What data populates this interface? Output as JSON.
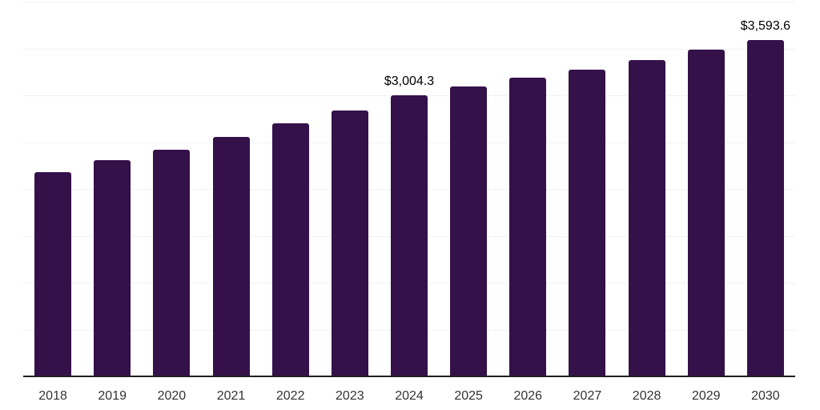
{
  "chart_data": {
    "type": "bar",
    "title": "",
    "xlabel": "",
    "ylabel": "",
    "categories": [
      "2018",
      "2019",
      "2020",
      "2021",
      "2022",
      "2023",
      "2024",
      "2025",
      "2026",
      "2027",
      "2028",
      "2029",
      "2030"
    ],
    "values": [
      2180,
      2305,
      2420,
      2555,
      2705,
      2840,
      3004.3,
      3095,
      3185,
      3275,
      3380,
      3485,
      3593.6
    ],
    "data_labels": [
      "",
      "",
      "",
      "",
      "",
      "",
      "$3,004.3",
      "",
      "",
      "",
      "",
      "",
      "$3,593.6"
    ],
    "ylim": [
      0,
      4000
    ],
    "gridline_interval": 500,
    "grid": "horizontal",
    "legend_position": "none",
    "bar_color": "#35114a",
    "gridline_color": "#f2f2f2",
    "axis_line_color": "#1f1f1f",
    "tick_label_color": "#333333",
    "value_label_color": "#000000"
  }
}
